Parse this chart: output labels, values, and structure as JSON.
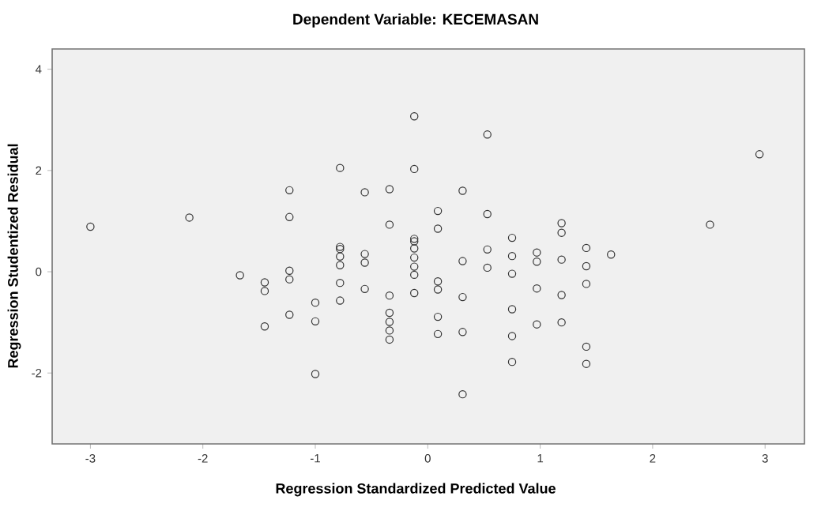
{
  "chart_data": {
    "type": "scatter",
    "title": "Dependent Variable: KECEMASAN",
    "xlabel": "Regression Standardized Predicted Value",
    "ylabel": "Regression Studentized Residual",
    "x": [
      -3.0,
      -2.12,
      -1.67,
      -1.45,
      -1.45,
      -1.45,
      -1.23,
      -1.23,
      -1.23,
      -1.23,
      -1.23,
      -1.0,
      -1.0,
      -1.0,
      -0.78,
      -0.78,
      -0.78,
      -0.78,
      -0.78,
      -0.78,
      -0.78,
      -0.56,
      -0.56,
      -0.56,
      -0.56,
      -0.34,
      -0.34,
      -0.34,
      -0.34,
      -0.34,
      -0.34,
      -0.34,
      -0.12,
      -0.12,
      -0.12,
      -0.12,
      -0.12,
      -0.12,
      -0.12,
      -0.12,
      -0.12,
      0.09,
      0.09,
      0.09,
      0.09,
      0.09,
      0.09,
      0.31,
      0.31,
      0.31,
      0.31,
      0.31,
      0.53,
      0.53,
      0.53,
      0.53,
      0.75,
      0.75,
      0.75,
      0.75,
      0.75,
      0.75,
      0.97,
      0.97,
      0.97,
      0.97,
      1.19,
      1.19,
      1.19,
      1.19,
      1.19,
      1.41,
      1.41,
      1.41,
      1.41,
      1.41,
      1.63,
      2.51,
      2.95
    ],
    "values": [
      0.89,
      1.07,
      -0.07,
      -0.21,
      -0.38,
      -1.08,
      1.61,
      1.08,
      0.02,
      -0.15,
      -0.85,
      -0.61,
      -0.98,
      -2.02,
      2.05,
      0.49,
      0.45,
      0.3,
      0.13,
      -0.22,
      -0.57,
      1.57,
      0.35,
      0.18,
      -0.34,
      1.63,
      0.93,
      -0.47,
      -0.81,
      -0.99,
      -1.16,
      -1.34,
      3.07,
      2.03,
      0.65,
      0.6,
      0.46,
      0.28,
      0.1,
      -0.06,
      -0.42,
      1.2,
      0.85,
      -0.19,
      -0.35,
      -0.89,
      -1.23,
      1.6,
      0.21,
      -0.5,
      -1.19,
      -2.42,
      2.71,
      1.14,
      0.44,
      0.08,
      0.67,
      0.31,
      -0.04,
      -0.74,
      -1.27,
      -1.78,
      0.38,
      0.2,
      -0.33,
      -1.04,
      0.96,
      0.77,
      0.24,
      -0.46,
      -1.0,
      0.47,
      0.11,
      -0.24,
      -1.48,
      -1.82,
      0.34,
      0.93,
      2.32
    ],
    "color": "#333333",
    "marker": "circle",
    "grid": false,
    "xlim": [
      -3.34,
      3.35
    ],
    "ylim": [
      -3.4,
      4.4
    ],
    "xticks": [
      -3,
      -2,
      -1,
      0,
      1,
      2,
      3
    ],
    "yticks": [
      -2,
      0,
      2,
      4
    ]
  }
}
